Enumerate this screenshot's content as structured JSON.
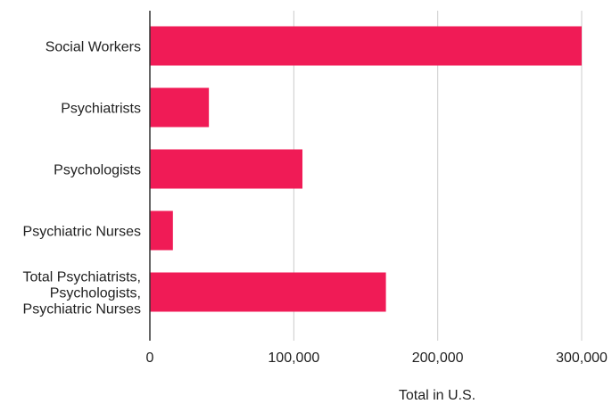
{
  "chart_data": {
    "type": "bar",
    "orientation": "horizontal",
    "categories": [
      [
        "Social Workers"
      ],
      [
        "Psychiatrists"
      ],
      [
        "Psychologists"
      ],
      [
        "Psychiatric Nurses"
      ],
      [
        "Total Psychiatrists,",
        "Psychologists,",
        "Psychiatric Nurses"
      ]
    ],
    "values": [
      300000,
      41000,
      106000,
      16000,
      164000
    ],
    "xlabel": "Total in U.S.",
    "ylabel": "",
    "xlim": [
      0,
      300000
    ],
    "xticks": [
      {
        "value": 0,
        "label": "0"
      },
      {
        "value": 100000,
        "label": "100,000"
      },
      {
        "value": 200000,
        "label": "200,000"
      },
      {
        "value": 300000,
        "label": "300,000"
      }
    ],
    "grid": true,
    "legend": "none",
    "bar_color": "#f01b56",
    "grid_color": "#cccccc",
    "axis_color": "#333333"
  }
}
